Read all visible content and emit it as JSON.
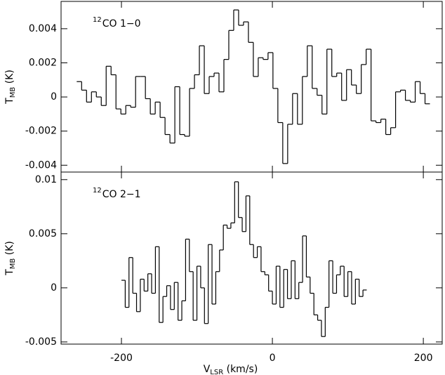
{
  "chart_data": [
    {
      "type": "step",
      "annotation": {
        "sup": "12",
        "text": "CO 1−0"
      },
      "ylabel": {
        "main": "T",
        "sub": "MB",
        "unit": " (K)"
      },
      "xlim": [
        -280,
        225
      ],
      "ylim": [
        -0.0044,
        0.0056
      ],
      "xticks": [
        -200,
        0,
        200
      ],
      "show_xtick_labels": false,
      "yticks": [
        0.004,
        0.002,
        0,
        -0.002,
        -0.004
      ],
      "color": "#000000",
      "x": [
        -256,
        -249.5,
        -243,
        -236.5,
        -230,
        -223.5,
        -217,
        -210.5,
        -204,
        -197.5,
        -191,
        -184.5,
        -178,
        -171.5,
        -165,
        -158.5,
        -152,
        -145.5,
        -139,
        -132.5,
        -126,
        -119.5,
        -113,
        -106.5,
        -100,
        -93.5,
        -87,
        -80.5,
        -74,
        -67.5,
        -61,
        -54.5,
        -48,
        -41.5,
        -35,
        -28.5,
        -22,
        -15.5,
        -9,
        -2.5,
        4,
        10.5,
        17,
        23.5,
        30,
        36.5,
        43,
        49.5,
        56,
        62.5,
        69,
        75.5,
        82,
        88.5,
        95,
        101.5,
        108,
        114.5,
        121,
        127.5,
        134,
        140.5,
        147,
        153.5,
        160,
        166.5,
        173,
        179.5,
        186,
        192.5,
        199,
        205.5
      ],
      "values": [
        0.0009,
        0.0004,
        -0.0003,
        0.0003,
        0.0,
        -0.0005,
        0.0018,
        0.0013,
        -0.0007,
        -0.001,
        -0.0005,
        -0.0006,
        0.0012,
        0.0012,
        -0.0001,
        -0.001,
        -0.0003,
        -0.0012,
        -0.0022,
        -0.0027,
        0.0006,
        -0.0022,
        -0.0023,
        0.0005,
        0.0013,
        0.003,
        0.0002,
        0.0012,
        0.0014,
        0.0003,
        0.0022,
        0.0039,
        0.0051,
        0.0042,
        0.0044,
        0.0032,
        0.0012,
        0.0023,
        0.0022,
        0.0026,
        0.0005,
        -0.0015,
        -0.0039,
        -0.0016,
        0.0002,
        -0.0016,
        0.0012,
        0.003,
        0.0005,
        0.0001,
        -0.001,
        0.0028,
        0.0012,
        0.0014,
        -0.0002,
        0.0016,
        0.0007,
        0.0002,
        0.0019,
        0.0028,
        -0.0014,
        -0.0015,
        -0.0013,
        -0.0022,
        -0.0018,
        0.0003,
        0.0004,
        -0.0002,
        -0.0003,
        0.0009,
        0.0002,
        -0.0004
      ]
    },
    {
      "type": "step",
      "annotation": {
        "sup": "12",
        "text": "CO 2−1"
      },
      "ylabel": {
        "main": "T",
        "sub": "MB",
        "unit": " (K)"
      },
      "xlabel": {
        "main": "V",
        "sub": "LSR",
        "unit": " (km/s)"
      },
      "xlim": [
        -280,
        225
      ],
      "ylim": [
        -0.0052,
        0.0107
      ],
      "xticks": [
        -200,
        0,
        200
      ],
      "show_xtick_labels": true,
      "yticks": [
        0.01,
        0.005,
        0,
        -0.005
      ],
      "color": "#000000",
      "x": [
        -197.5,
        -192.5,
        -187.5,
        -182.5,
        -177.5,
        -172.5,
        -167.5,
        -162.5,
        -157.5,
        -152.5,
        -147.5,
        -142.5,
        -137.5,
        -132.5,
        -127.5,
        -122.5,
        -117.5,
        -112.5,
        -107.5,
        -102.5,
        -97.5,
        -92.5,
        -87.5,
        -82.5,
        -77.5,
        -72.5,
        -67.5,
        -62.5,
        -57.5,
        -52.5,
        -47.5,
        -42.5,
        -37.5,
        -32.5,
        -27.5,
        -22.5,
        -17.5,
        -12.5,
        -7.5,
        -2.5,
        2.5,
        7.5,
        12.5,
        17.5,
        22.5,
        27.5,
        32.5,
        37.5,
        42.5,
        47.5,
        52.5,
        57.5,
        62.5,
        67.5,
        72.5,
        77.5,
        82.5,
        87.5,
        92.5,
        97.5,
        102.5,
        107.5,
        112.5,
        117.5,
        122.5
      ],
      "values": [
        0.0007,
        -0.0018,
        0.0028,
        -0.0005,
        -0.0022,
        0.0008,
        -0.0003,
        0.0013,
        -0.0005,
        0.0038,
        -0.0032,
        -0.0008,
        0.0002,
        -0.002,
        0.0005,
        -0.003,
        -0.0012,
        0.0045,
        0.0015,
        -0.003,
        0.002,
        0.0,
        -0.0033,
        0.004,
        -0.0015,
        0.0015,
        0.0035,
        0.0058,
        0.0055,
        0.006,
        0.0098,
        0.0065,
        0.0052,
        0.0085,
        0.004,
        0.0028,
        0.0038,
        0.0015,
        0.0012,
        -0.0003,
        -0.0015,
        0.002,
        -0.0018,
        0.0017,
        -0.001,
        0.0025,
        -0.001,
        0.0005,
        0.0048,
        0.001,
        -0.0005,
        -0.0025,
        -0.003,
        -0.0045,
        -0.0018,
        0.0025,
        -0.0005,
        0.0012,
        0.002,
        -0.0008,
        0.0015,
        -0.0015,
        0.0008,
        -0.0008,
        -0.0002
      ]
    }
  ]
}
